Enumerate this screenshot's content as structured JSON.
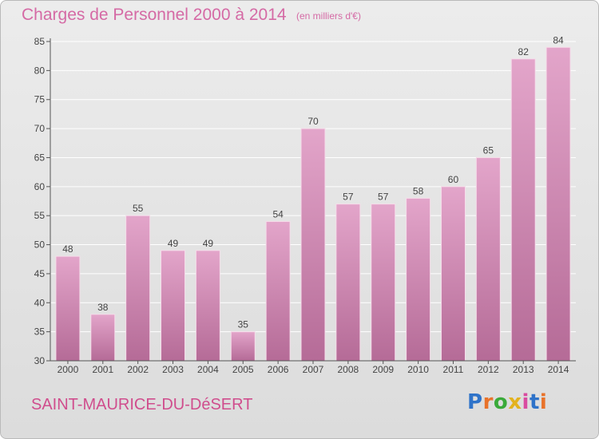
{
  "header": {
    "title": "Charges de Personnel 2000 à 2014",
    "subtitle": "(en milliers d'€)"
  },
  "footer": {
    "place": "SAINT-MAURICE-DU-DéSERT",
    "logo_text": "Proxiti",
    "logo_colors": [
      "#2f73c9",
      "#e8722a",
      "#3aaa3a",
      "#e3b21e",
      "#d94ca0",
      "#2f73c9",
      "#e8722a"
    ]
  },
  "colors": {
    "bar_top": "#e3a5ca",
    "bar_bottom": "#b56b97",
    "bar_edge": "#f6dcea",
    "label": "#444444",
    "grid": "#ffffff",
    "axis": "#555555"
  },
  "chart_data": {
    "type": "bar",
    "categories": [
      "2000",
      "2001",
      "2002",
      "2003",
      "2004",
      "2005",
      "2006",
      "2007",
      "2008",
      "2009",
      "2010",
      "2011",
      "2012",
      "2013",
      "2014"
    ],
    "values": [
      48,
      38,
      55,
      49,
      49,
      35,
      54,
      70,
      57,
      57,
      58,
      60,
      65,
      82,
      84
    ],
    "title": "Charges de Personnel 2000 à 2014",
    "ylim": [
      30,
      85
    ],
    "yticks": [
      30,
      35,
      40,
      45,
      50,
      55,
      60,
      65,
      70,
      75,
      80,
      85
    ],
    "grid": true
  }
}
